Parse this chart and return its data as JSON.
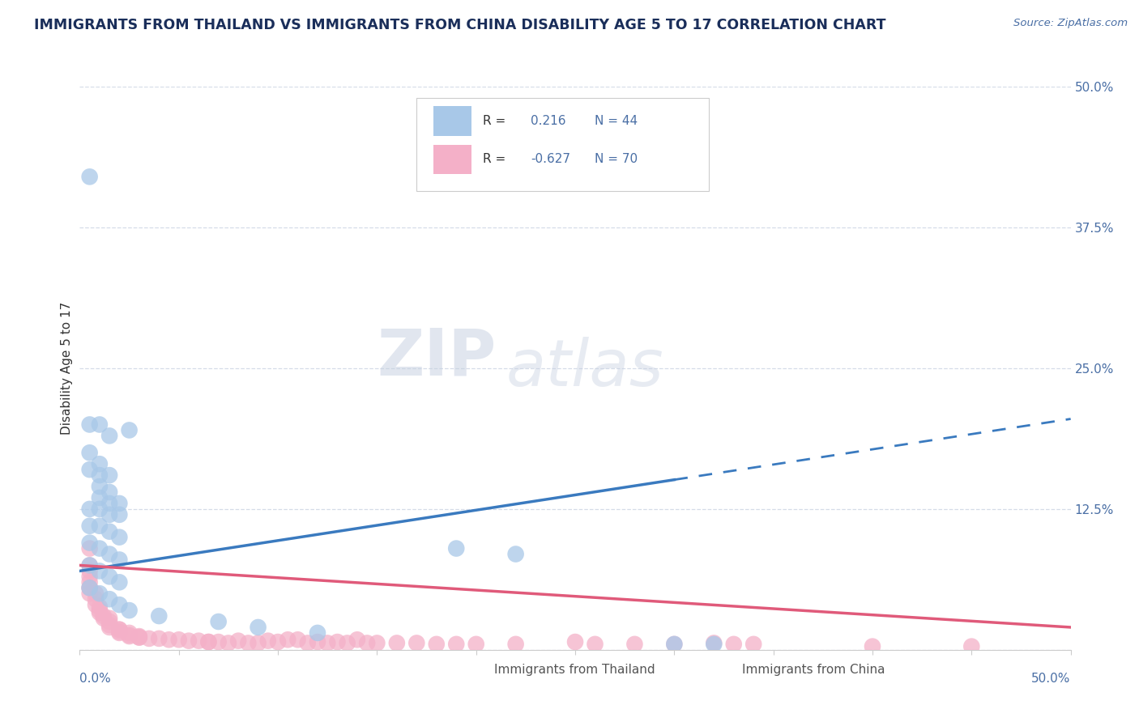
{
  "title": "IMMIGRANTS FROM THAILAND VS IMMIGRANTS FROM CHINA DISABILITY AGE 5 TO 17 CORRELATION CHART",
  "source": "Source: ZipAtlas.com",
  "ylabel": "Disability Age 5 to 17",
  "right_yticklabels": [
    "12.5%",
    "25.0%",
    "37.5%",
    "50.0%"
  ],
  "right_yticks": [
    0.125,
    0.25,
    0.375,
    0.5
  ],
  "xlim": [
    0.0,
    0.5
  ],
  "ylim": [
    0.0,
    0.5
  ],
  "thailand_R": 0.216,
  "thailand_N": 44,
  "china_R": -0.627,
  "china_N": 70,
  "thailand_color": "#a8c8e8",
  "thailand_line_color": "#3a7abf",
  "china_color": "#f4b0c8",
  "china_line_color": "#e05a7a",
  "thailand_scatter": [
    [
      0.005,
      0.42
    ],
    [
      0.01,
      0.2
    ],
    [
      0.015,
      0.19
    ],
    [
      0.005,
      0.16
    ],
    [
      0.01,
      0.155
    ],
    [
      0.015,
      0.13
    ],
    [
      0.005,
      0.2
    ],
    [
      0.025,
      0.195
    ],
    [
      0.005,
      0.175
    ],
    [
      0.01,
      0.165
    ],
    [
      0.015,
      0.155
    ],
    [
      0.01,
      0.145
    ],
    [
      0.015,
      0.14
    ],
    [
      0.01,
      0.135
    ],
    [
      0.02,
      0.13
    ],
    [
      0.005,
      0.125
    ],
    [
      0.01,
      0.125
    ],
    [
      0.015,
      0.12
    ],
    [
      0.02,
      0.12
    ],
    [
      0.005,
      0.11
    ],
    [
      0.01,
      0.11
    ],
    [
      0.015,
      0.105
    ],
    [
      0.02,
      0.1
    ],
    [
      0.005,
      0.095
    ],
    [
      0.01,
      0.09
    ],
    [
      0.015,
      0.085
    ],
    [
      0.02,
      0.08
    ],
    [
      0.005,
      0.075
    ],
    [
      0.01,
      0.07
    ],
    [
      0.015,
      0.065
    ],
    [
      0.02,
      0.06
    ],
    [
      0.005,
      0.055
    ],
    [
      0.01,
      0.05
    ],
    [
      0.015,
      0.045
    ],
    [
      0.02,
      0.04
    ],
    [
      0.025,
      0.035
    ],
    [
      0.04,
      0.03
    ],
    [
      0.07,
      0.025
    ],
    [
      0.09,
      0.02
    ],
    [
      0.12,
      0.015
    ],
    [
      0.19,
      0.09
    ],
    [
      0.22,
      0.085
    ],
    [
      0.3,
      0.005
    ],
    [
      0.32,
      0.005
    ]
  ],
  "china_scatter": [
    [
      0.005,
      0.09
    ],
    [
      0.005,
      0.075
    ],
    [
      0.005,
      0.07
    ],
    [
      0.005,
      0.065
    ],
    [
      0.005,
      0.06
    ],
    [
      0.005,
      0.055
    ],
    [
      0.005,
      0.055
    ],
    [
      0.005,
      0.05
    ],
    [
      0.008,
      0.05
    ],
    [
      0.008,
      0.045
    ],
    [
      0.008,
      0.04
    ],
    [
      0.01,
      0.038
    ],
    [
      0.01,
      0.035
    ],
    [
      0.01,
      0.033
    ],
    [
      0.012,
      0.03
    ],
    [
      0.012,
      0.028
    ],
    [
      0.015,
      0.028
    ],
    [
      0.015,
      0.025
    ],
    [
      0.015,
      0.022
    ],
    [
      0.015,
      0.02
    ],
    [
      0.02,
      0.018
    ],
    [
      0.02,
      0.018
    ],
    [
      0.02,
      0.016
    ],
    [
      0.02,
      0.015
    ],
    [
      0.025,
      0.015
    ],
    [
      0.025,
      0.013
    ],
    [
      0.025,
      0.012
    ],
    [
      0.03,
      0.012
    ],
    [
      0.03,
      0.011
    ],
    [
      0.03,
      0.011
    ],
    [
      0.035,
      0.01
    ],
    [
      0.04,
      0.01
    ],
    [
      0.045,
      0.009
    ],
    [
      0.05,
      0.009
    ],
    [
      0.055,
      0.008
    ],
    [
      0.06,
      0.008
    ],
    [
      0.065,
      0.007
    ],
    [
      0.065,
      0.007
    ],
    [
      0.07,
      0.007
    ],
    [
      0.075,
      0.006
    ],
    [
      0.08,
      0.008
    ],
    [
      0.085,
      0.006
    ],
    [
      0.09,
      0.006
    ],
    [
      0.095,
      0.008
    ],
    [
      0.1,
      0.007
    ],
    [
      0.105,
      0.009
    ],
    [
      0.11,
      0.009
    ],
    [
      0.115,
      0.006
    ],
    [
      0.12,
      0.007
    ],
    [
      0.125,
      0.006
    ],
    [
      0.13,
      0.007
    ],
    [
      0.135,
      0.006
    ],
    [
      0.14,
      0.009
    ],
    [
      0.145,
      0.006
    ],
    [
      0.15,
      0.006
    ],
    [
      0.16,
      0.006
    ],
    [
      0.17,
      0.006
    ],
    [
      0.18,
      0.005
    ],
    [
      0.19,
      0.005
    ],
    [
      0.2,
      0.005
    ],
    [
      0.22,
      0.005
    ],
    [
      0.25,
      0.007
    ],
    [
      0.26,
      0.005
    ],
    [
      0.28,
      0.005
    ],
    [
      0.3,
      0.005
    ],
    [
      0.32,
      0.006
    ],
    [
      0.33,
      0.005
    ],
    [
      0.34,
      0.005
    ],
    [
      0.4,
      0.003
    ],
    [
      0.45,
      0.003
    ]
  ],
  "watermark_zip": "ZIP",
  "watermark_atlas": "atlas",
  "background_color": "#ffffff",
  "grid_color": "#d5dce8",
  "title_color": "#1a2e5a",
  "axis_label_color": "#4a6fa5",
  "right_tick_color": "#4a6fa5",
  "legend_border_color": "#cccccc"
}
